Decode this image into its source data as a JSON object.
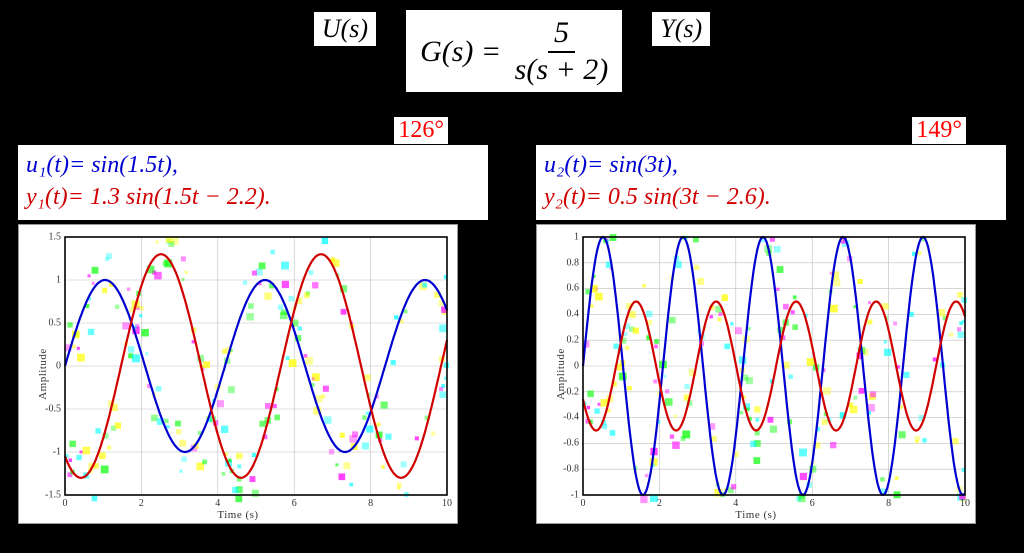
{
  "transfer_function": {
    "input_label": "U(s)",
    "output_label": "Y(s)",
    "lhs": "G(s) =",
    "numerator": "5",
    "denominator": "s(s + 2)"
  },
  "panels": [
    {
      "id": "left",
      "deg_label": "126°",
      "u_eq": "u₁(t)= sin(1.5t),",
      "y_eq": "y₁(t)= 1.3 sin(1.5t − 2.2).",
      "chart": {
        "type": "line",
        "xlim": [
          0,
          10
        ],
        "ylim": [
          -1.5,
          1.5
        ],
        "xticks": [
          0,
          2,
          4,
          6,
          8,
          10
        ],
        "yticks": [
          -1.5,
          -1,
          -0.5,
          0,
          0.5,
          1,
          1.5
        ],
        "xlabel": "Time (s)",
        "ylabel": "Amplitude",
        "background_color": "#ffffff",
        "grid_color": "#bfbfbf",
        "axis_color": "#000000",
        "series": [
          {
            "name": "u1",
            "color": "#0000d0",
            "width": 2.2,
            "omega": 1.5,
            "amp": 1.0,
            "phase": 0.0
          },
          {
            "name": "y1",
            "color": "#d00000",
            "width": 2.2,
            "omega": 1.5,
            "amp": 1.3,
            "phase": -2.2
          }
        ],
        "noise_colors": [
          "#ff00ff",
          "#ffff00",
          "#00ffff",
          "#00ff00"
        ],
        "noise_amp": 0.18
      }
    },
    {
      "id": "right",
      "deg_label": "149°",
      "u_eq": "u₂(t)= sin(3t),",
      "y_eq": "y₂(t)= 0.5 sin(3t − 2.6).",
      "chart": {
        "type": "line",
        "xlim": [
          0,
          10
        ],
        "ylim": [
          -1.0,
          1.0
        ],
        "xticks": [
          0,
          2,
          4,
          6,
          8,
          10
        ],
        "yticks": [
          -1,
          -0.8,
          -0.6,
          -0.4,
          -0.2,
          0,
          0.2,
          0.4,
          0.6,
          0.8,
          1
        ],
        "xlabel": "Time (s)",
        "ylabel": "Amplitude",
        "background_color": "#ffffff",
        "grid_color": "#bfbfbf",
        "axis_color": "#000000",
        "series": [
          {
            "name": "u2",
            "color": "#0000d0",
            "width": 2.2,
            "omega": 3.0,
            "amp": 1.0,
            "phase": 0.0
          },
          {
            "name": "y2",
            "color": "#d00000",
            "width": 2.2,
            "omega": 3.0,
            "amp": 0.5,
            "phase": -2.6
          }
        ],
        "noise_colors": [
          "#ff00ff",
          "#ffff00",
          "#00ffff",
          "#00ff00"
        ],
        "noise_amp": 0.12
      }
    }
  ],
  "colors": {
    "page_bg": "#000000",
    "text_input": "#0000d0",
    "text_output": "#d00000",
    "callout": "#ff0000"
  }
}
